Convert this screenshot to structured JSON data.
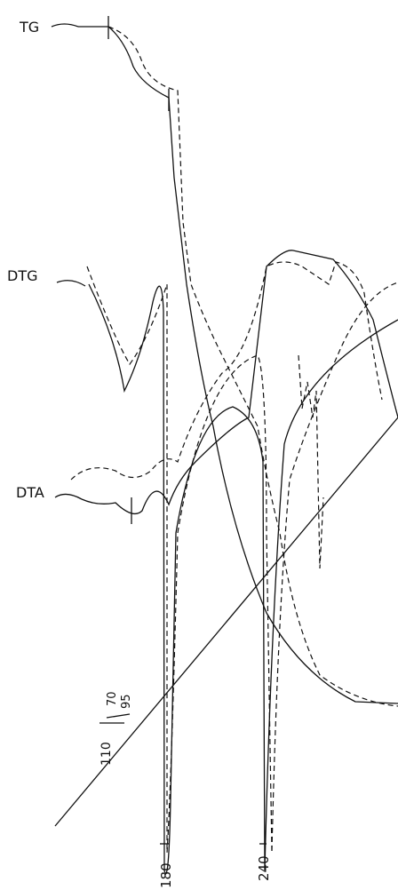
{
  "labels": {
    "tg": "TG",
    "dtg": "DTG",
    "dta": "DTA"
  },
  "temperature_marks": [
    "70",
    "95",
    "110",
    "180",
    "240"
  ]
}
